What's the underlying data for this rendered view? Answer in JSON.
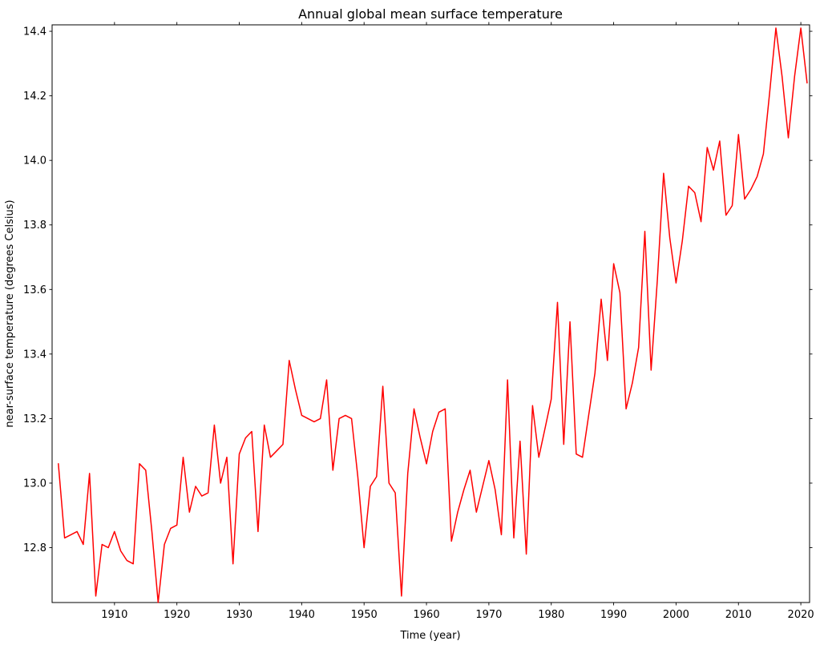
{
  "title": "Annual global mean surface temperature",
  "chart_data": {
    "type": "line",
    "title": "Annual global mean surface temperature",
    "xlabel": "Time (year)",
    "ylabel": "near-surface temperature (degrees Celsius)",
    "legend": null,
    "grid": false,
    "line_color": "#ff0000",
    "background_color": "#ffffff",
    "axis_color": "#000000",
    "xlim": [
      1900,
      2021.4
    ],
    "ylim": [
      12.63,
      14.42
    ],
    "xticks": [
      1910,
      1920,
      1930,
      1940,
      1950,
      1960,
      1970,
      1980,
      1990,
      2000,
      2010,
      2020
    ],
    "yticks": [
      12.8,
      13.0,
      13.2,
      13.4,
      13.6,
      13.8,
      14.0,
      14.2,
      14.4
    ],
    "years": [
      1901,
      1902,
      1903,
      1904,
      1905,
      1906,
      1907,
      1908,
      1909,
      1910,
      1911,
      1912,
      1913,
      1914,
      1915,
      1916,
      1917,
      1918,
      1919,
      1920,
      1921,
      1922,
      1923,
      1924,
      1925,
      1926,
      1927,
      1928,
      1929,
      1930,
      1931,
      1932,
      1933,
      1934,
      1935,
      1936,
      1937,
      1938,
      1939,
      1940,
      1941,
      1942,
      1943,
      1944,
      1945,
      1946,
      1947,
      1948,
      1949,
      1950,
      1951,
      1952,
      1953,
      1954,
      1955,
      1956,
      1957,
      1958,
      1959,
      1960,
      1961,
      1962,
      1963,
      1964,
      1965,
      1966,
      1967,
      1968,
      1969,
      1970,
      1971,
      1972,
      1973,
      1974,
      1975,
      1976,
      1977,
      1978,
      1979,
      1980,
      1981,
      1982,
      1983,
      1984,
      1985,
      1986,
      1987,
      1988,
      1989,
      1990,
      1991,
      1992,
      1993,
      1994,
      1995,
      1996,
      1997,
      1998,
      1999,
      2000,
      2001,
      2002,
      2003,
      2004,
      2005,
      2006,
      2007,
      2008,
      2009,
      2010,
      2011,
      2012,
      2013,
      2014,
      2015,
      2016,
      2017,
      2018,
      2019,
      2020,
      2021
    ],
    "values": [
      13.06,
      12.83,
      12.84,
      12.85,
      12.81,
      13.03,
      12.65,
      12.81,
      12.8,
      12.85,
      12.79,
      12.76,
      12.75,
      13.06,
      13.04,
      12.85,
      12.63,
      12.81,
      12.86,
      12.87,
      13.08,
      12.91,
      12.99,
      12.96,
      12.97,
      13.18,
      13.0,
      13.08,
      12.75,
      13.09,
      13.14,
      13.16,
      12.85,
      13.18,
      13.08,
      13.1,
      13.12,
      13.38,
      13.29,
      13.21,
      13.2,
      13.19,
      13.2,
      13.32,
      13.04,
      13.2,
      13.21,
      13.2,
      13.02,
      12.8,
      12.99,
      13.02,
      13.3,
      13.0,
      12.97,
      12.65,
      13.03,
      13.23,
      13.14,
      13.06,
      13.16,
      13.22,
      13.23,
      12.82,
      12.91,
      12.98,
      13.04,
      12.91,
      12.99,
      13.07,
      12.98,
      12.84,
      13.32,
      12.83,
      13.13,
      12.78,
      13.24,
      13.08,
      13.17,
      13.26,
      13.56,
      13.12,
      13.5,
      13.09,
      13.08,
      13.21,
      13.34,
      13.57,
      13.38,
      13.68,
      13.59,
      13.23,
      13.31,
      13.42,
      13.78,
      13.35,
      13.63,
      13.96,
      13.76,
      13.62,
      13.75,
      13.92,
      13.9,
      13.81,
      14.04,
      13.97,
      14.06,
      13.83,
      13.86,
      14.08,
      13.88,
      13.91,
      13.95,
      14.02,
      14.21,
      14.41,
      14.26,
      14.07,
      14.26,
      14.41,
      14.24
    ]
  }
}
